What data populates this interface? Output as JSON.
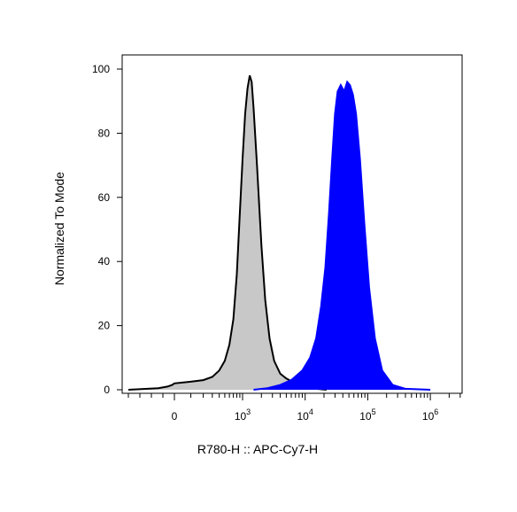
{
  "chart_data": {
    "type": "area",
    "xlabel": "R780-H :: APC-Cy7-H",
    "ylabel": "Normalized To Mode",
    "x_scale": "biexponential (log decades 10^3 to 10^6, linear near 0)",
    "ylim": [
      0,
      100
    ],
    "y_ticks": [
      0,
      20,
      40,
      60,
      80,
      100
    ],
    "x_ticks": [
      {
        "value": 0,
        "label": "0"
      },
      {
        "value": 1000,
        "base": "10",
        "exp": "3"
      },
      {
        "value": 10000,
        "base": "10",
        "exp": "4"
      },
      {
        "value": 100000,
        "base": "10",
        "exp": "5"
      },
      {
        "value": 1000000,
        "base": "10",
        "exp": "6"
      }
    ],
    "grid": false,
    "series": [
      {
        "color": "#c8c8c8",
        "stroke": "#000000",
        "points": [
          [
            -2000,
            0
          ],
          [
            -700,
            0.5
          ],
          [
            -300,
            1
          ],
          [
            -100,
            1.5
          ],
          [
            0,
            2
          ],
          [
            100,
            2.5
          ],
          [
            200,
            3
          ],
          [
            300,
            4
          ],
          [
            400,
            6
          ],
          [
            500,
            9
          ],
          [
            600,
            14
          ],
          [
            700,
            22
          ],
          [
            800,
            36
          ],
          [
            900,
            55
          ],
          [
            1000,
            72
          ],
          [
            1100,
            86
          ],
          [
            1200,
            94
          ],
          [
            1300,
            98
          ],
          [
            1400,
            96
          ],
          [
            1500,
            88
          ],
          [
            1700,
            70
          ],
          [
            2000,
            45
          ],
          [
            2300,
            28
          ],
          [
            2700,
            16
          ],
          [
            3200,
            9
          ],
          [
            4000,
            5
          ],
          [
            5000,
            3.5
          ],
          [
            7000,
            2
          ],
          [
            10000,
            1
          ],
          [
            15000,
            0.3
          ],
          [
            22000,
            0
          ]
        ]
      },
      {
        "color": "#0000ff",
        "stroke": "#0000ff",
        "points": [
          [
            1500,
            0
          ],
          [
            2500,
            0.5
          ],
          [
            4000,
            1.5
          ],
          [
            6000,
            3
          ],
          [
            9000,
            6
          ],
          [
            12000,
            10
          ],
          [
            15000,
            16
          ],
          [
            18000,
            26
          ],
          [
            21000,
            38
          ],
          [
            24000,
            55
          ],
          [
            27000,
            72
          ],
          [
            30000,
            86
          ],
          [
            33000,
            93
          ],
          [
            37000,
            95
          ],
          [
            42000,
            93
          ],
          [
            47000,
            96
          ],
          [
            52000,
            95
          ],
          [
            58000,
            92
          ],
          [
            65000,
            86
          ],
          [
            75000,
            72
          ],
          [
            88000,
            52
          ],
          [
            105000,
            32
          ],
          [
            130000,
            16
          ],
          [
            170000,
            6
          ],
          [
            250000,
            1.5
          ],
          [
            400000,
            0.3
          ],
          [
            1000000,
            0
          ]
        ]
      }
    ]
  }
}
